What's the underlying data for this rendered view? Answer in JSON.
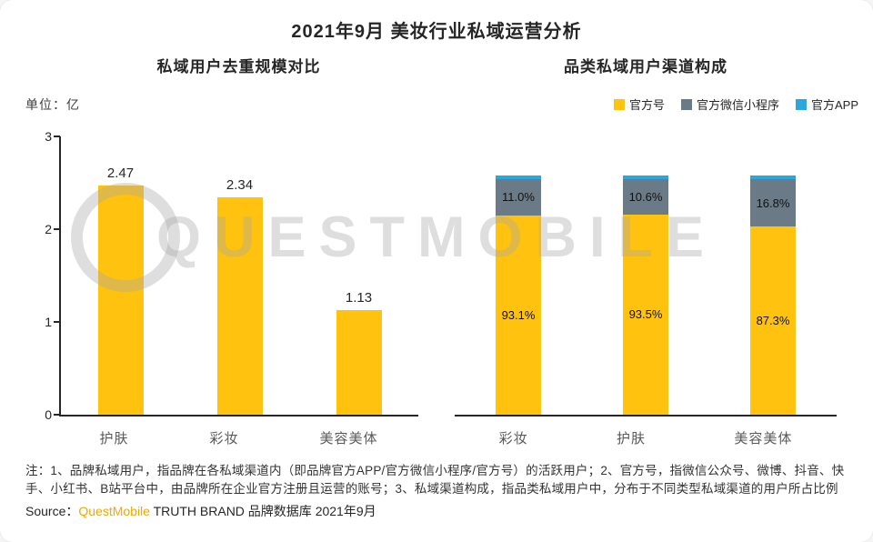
{
  "page": {
    "title": "2021年9月 美妆行业私域运营分析",
    "watermark": "QUESTMOBILE"
  },
  "chart_data": [
    {
      "type": "bar",
      "title": "私域用户去重规模对比",
      "unit_label": "单位：亿",
      "categories": [
        "护肤",
        "彩妆",
        "美容美体"
      ],
      "values": [
        2.47,
        2.34,
        1.13
      ],
      "value_labels": [
        "2.47",
        "2.34",
        "1.13"
      ],
      "ylim": [
        0,
        3
      ],
      "yticks": [
        0,
        1,
        2,
        3
      ],
      "bar_color": "#FFC20E",
      "grid": false
    },
    {
      "type": "stacked-bar",
      "title": "品类私域用户渠道构成",
      "categories": [
        "彩妆",
        "护肤",
        "美容美体"
      ],
      "value_unit": "%",
      "legend_position": "top-right",
      "series": [
        {
          "name": "官方号",
          "color": "#FFC20E",
          "values": [
            93.1,
            93.5,
            87.3
          ],
          "labels": [
            "93.1%",
            "93.5%",
            "87.3%"
          ]
        },
        {
          "name": "官方微信小程序",
          "color": "#6A7A87",
          "values": [
            11.0,
            10.6,
            16.8
          ],
          "labels": [
            "11.0%",
            "10.6%",
            "16.8%"
          ]
        },
        {
          "name": "官方APP",
          "color": "#2BA7DF",
          "values": [
            2,
            2,
            2
          ],
          "labels": [
            "",
            "",
            ""
          ],
          "estimated": true
        }
      ]
    }
  ],
  "footer": {
    "notes": "注：1、品牌私域用户，指品牌在各私域渠道内（即品牌官方APP/官方微信小程序/官方号）的活跃用户；2、官方号，指微信公众号、微博、抖音、快手、小红书、B站平台中，由品牌所在企业官方注册且运营的账号；3、私域渠道构成，指品类私域用户中，分布于不同类型私域渠道的用户所占比例",
    "source_label": "Source：",
    "source_brand": "QuestMobile",
    "source_rest": " TRUTH BRAND 品牌数据库 2021年9月"
  }
}
